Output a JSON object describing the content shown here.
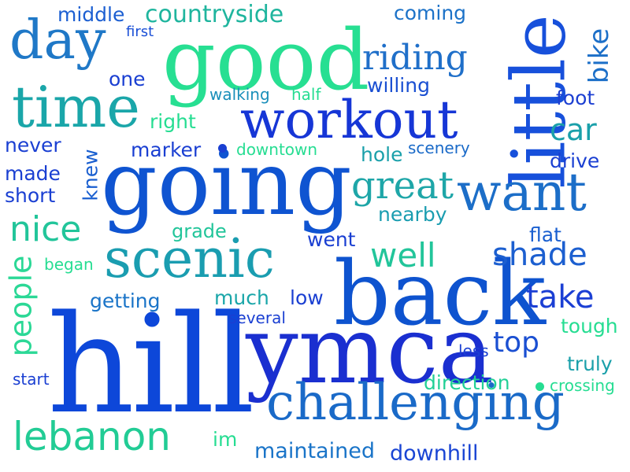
{
  "words": {
    "hill": "hill",
    "ymca": "ymca",
    "back": "back",
    "going": "going",
    "good": "good",
    "little": "little",
    "workout": "workout",
    "challenging": "challenging",
    "time": "time",
    "day": "day",
    "scenic": "scenic",
    "want": "want",
    "lebanon": "lebanon",
    "great": "great",
    "riding": "riding",
    "shade": "shade",
    "take": "take",
    "nice": "nice",
    "well": "well",
    "top": "top",
    "countryside": "countryside",
    "people": "people",
    "bike": "bike",
    "car": "car",
    "maintained": "maintained",
    "downhill": "downhill",
    "direction": "direction",
    "middle": "middle",
    "coming": "coming",
    "first": "first",
    "willing": "willing",
    "walking": "walking",
    "half": "half",
    "foot": "foot",
    "right": "right",
    "never": "never",
    "knew": "knew",
    "marker": "marker",
    "downtown": "downtown",
    "hole": "hole",
    "scenery": "scenery",
    "drive": "drive",
    "made": "made",
    "short": "short",
    "nearby": "nearby",
    "grade": "grade",
    "went": "went",
    "flat": "flat",
    "began": "began",
    "getting": "getting",
    "much": "much",
    "low": "low",
    "several": "several",
    "tough": "tough",
    "less": "less",
    "truly": "truly",
    "start": "start",
    "crossing": "crossing",
    "im": "im"
  },
  "colors": {
    "deep_blue": "#0a3fd6",
    "blue": "#1750d8",
    "mid_blue": "#1f6fc8",
    "teal": "#1aa0a8",
    "aqua": "#1fc8a0",
    "mint": "#26e08f",
    "navy": "#1a2fb8"
  }
}
